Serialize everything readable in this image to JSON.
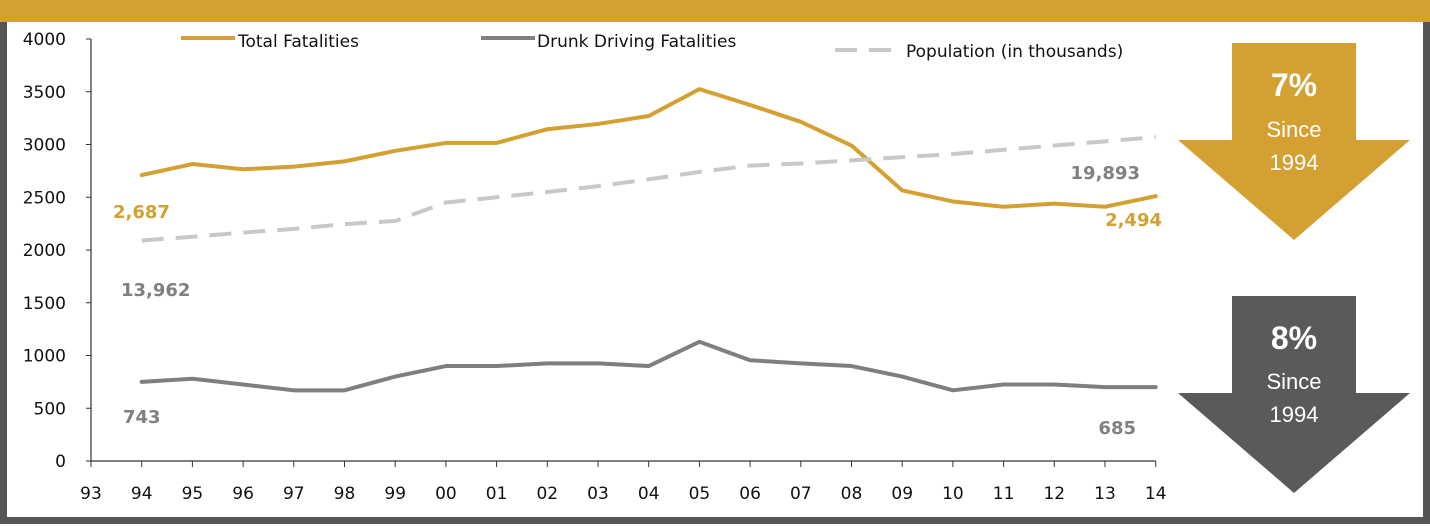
{
  "colors": {
    "gold": "#d4a032",
    "gray": "#7f7f7f",
    "dash": "#c8c8c8",
    "dark_arrow": "#5a5a5a",
    "frame": "#555555"
  },
  "chart_data": {
    "type": "line",
    "x_ticks": [
      "93",
      "94",
      "95",
      "96",
      "97",
      "98",
      "99",
      "00",
      "01",
      "02",
      "03",
      "04",
      "05",
      "06",
      "07",
      "08",
      "09",
      "10",
      "11",
      "12",
      "13",
      "14"
    ],
    "y_ticks": [
      "0",
      "500",
      "1000",
      "1500",
      "2000",
      "2500",
      "3000",
      "3500",
      "4000"
    ],
    "ylim": [
      0,
      4000
    ],
    "x_categories": [
      "94",
      "95",
      "96",
      "97",
      "98",
      "99",
      "00",
      "01",
      "02",
      "03",
      "04",
      "05",
      "06",
      "07",
      "08",
      "09",
      "10",
      "11",
      "12",
      "13",
      "14"
    ],
    "series": [
      {
        "name": "Total Fatalities",
        "color": "#d4a032",
        "dashed": false,
        "values": [
          2710,
          2815,
          2765,
          2790,
          2840,
          2940,
          3015,
          3015,
          3145,
          3195,
          3270,
          3525,
          3375,
          3215,
          2990,
          2565,
          2460,
          2410,
          2440,
          2410,
          2510
        ]
      },
      {
        "name": "Drunk Driving Fatalities",
        "color": "#7f7f7f",
        "dashed": false,
        "values": [
          750,
          780,
          725,
          670,
          670,
          800,
          900,
          900,
          925,
          925,
          900,
          1130,
          955,
          925,
          900,
          800,
          670,
          725,
          725,
          700,
          700
        ]
      },
      {
        "name": "Population (in thousands)",
        "color": "#c8c8c8",
        "dashed": true,
        "values": [
          2090,
          2125,
          2165,
          2200,
          2245,
          2275,
          2450,
          2500,
          2550,
          2605,
          2670,
          2740,
          2800,
          2820,
          2850,
          2880,
          2910,
          2950,
          2990,
          3030,
          3070
        ]
      }
    ],
    "annotations": [
      {
        "text": "2,687",
        "color": "#d4a032",
        "at": "94"
      },
      {
        "text": "2,494",
        "color": "#d4a032",
        "at": "14"
      },
      {
        "text": "13,962",
        "color": "#808080",
        "at": "94"
      },
      {
        "text": "19,893",
        "color": "#808080",
        "at": "13"
      },
      {
        "text": "743",
        "color": "#808080",
        "at": "94"
      },
      {
        "text": "685",
        "color": "#808080",
        "at": "14"
      }
    ]
  },
  "arrows": [
    {
      "percent": "7%",
      "since": "Since",
      "year": "1994",
      "color": "#d4a032"
    },
    {
      "percent": "8%",
      "since": "Since",
      "year": "1994",
      "color": "#5a5a5a"
    }
  ]
}
